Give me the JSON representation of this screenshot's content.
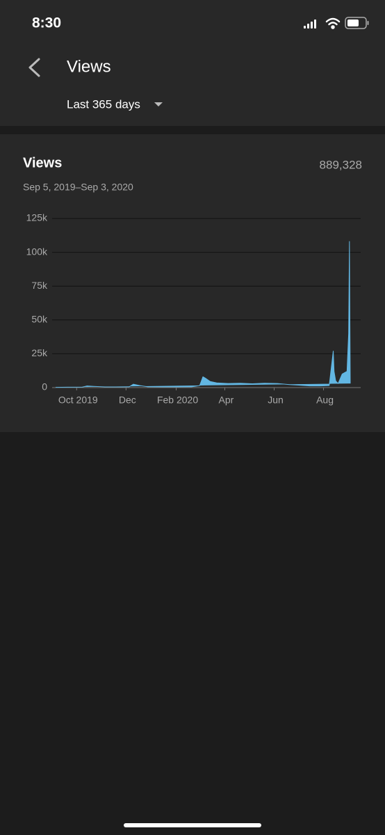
{
  "status_bar": {
    "time": "8:30"
  },
  "header": {
    "title": "Views",
    "period": "Last 365 days"
  },
  "card": {
    "title": "Views",
    "total": "889,328",
    "date_range": "Sep 5, 2019–Sep 3, 2020"
  },
  "chart_data": {
    "type": "area",
    "color": "#62b6e2",
    "grid": true,
    "x": [
      "2019-09-05",
      "2019-09-20",
      "2019-10-08",
      "2019-10-14",
      "2019-10-22",
      "2019-11-05",
      "2019-11-25",
      "2019-12-05",
      "2019-12-10",
      "2019-12-18",
      "2019-12-28",
      "2020-01-15",
      "2020-02-01",
      "2020-02-20",
      "2020-03-01",
      "2020-03-05",
      "2020-03-08",
      "2020-03-14",
      "2020-03-22",
      "2020-04-05",
      "2020-04-20",
      "2020-05-05",
      "2020-05-20",
      "2020-06-05",
      "2020-06-20",
      "2020-07-01",
      "2020-07-15",
      "2020-07-28",
      "2020-08-08",
      "2020-08-13",
      "2020-08-14",
      "2020-08-16",
      "2020-08-19",
      "2020-08-24",
      "2020-08-27",
      "2020-08-30",
      "2020-09-01",
      "2020-09-02",
      "2020-09-03"
    ],
    "values": [
      200,
      300,
      400,
      1200,
      900,
      500,
      500,
      600,
      2500,
      1500,
      600,
      500,
      500,
      600,
      1500,
      8000,
      7000,
      4500,
      3500,
      3000,
      3200,
      2800,
      3200,
      3000,
      2200,
      1800,
      1200,
      1200,
      1500,
      27000,
      12000,
      5000,
      3000,
      10000,
      11000,
      12000,
      40000,
      108000,
      3000
    ],
    "xlim": [
      "2019-09-05",
      "2020-09-03"
    ],
    "xticks": [
      {
        "value": "2019-10-01",
        "label": "Oct 2019"
      },
      {
        "value": "2019-12-01",
        "label": "Dec"
      },
      {
        "value": "2020-02-01",
        "label": "Feb 2020"
      },
      {
        "value": "2020-04-01",
        "label": "Apr"
      },
      {
        "value": "2020-06-01",
        "label": "Jun"
      },
      {
        "value": "2020-08-01",
        "label": "Aug"
      }
    ],
    "ylim": [
      0,
      125000
    ],
    "yticks": [
      0,
      {
        "value": 25000,
        "label": "25k"
      },
      {
        "value": 50000,
        "label": "50k"
      },
      {
        "value": 75000,
        "label": "75k"
      },
      {
        "value": 100000,
        "label": "100k"
      },
      {
        "value": 125000,
        "label": "125k"
      }
    ]
  }
}
